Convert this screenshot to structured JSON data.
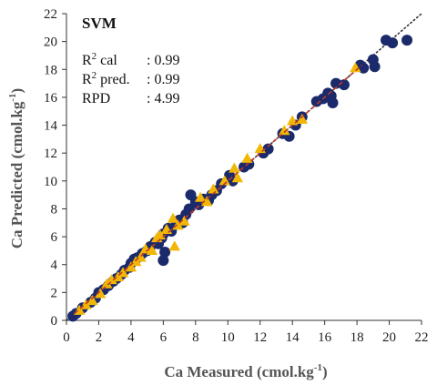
{
  "chart_data": {
    "type": "scatter",
    "title": "SVM",
    "xlabel": "Ca Measured (cmol.kg-1)",
    "ylabel": "Ca Predicted (cmol.kg-1)",
    "xlabel_parts": {
      "main": "Ca Measured (cmol.kg",
      "sup": "-1",
      "end": ")"
    },
    "ylabel_parts": {
      "main": "Ca Predicted (cmol.kg",
      "sup": "-1",
      "end": ")"
    },
    "xlim": [
      0,
      22
    ],
    "ylim": [
      0,
      22
    ],
    "x_ticks": [
      0,
      2,
      4,
      6,
      8,
      10,
      12,
      14,
      16,
      18,
      20,
      22
    ],
    "y_ticks": [
      0,
      2,
      4,
      6,
      8,
      10,
      12,
      14,
      16,
      18,
      20,
      22
    ],
    "grid": false,
    "stats": [
      {
        "label": "R",
        "sup": "2",
        "rest": " cal",
        "value": ": 0.99"
      },
      {
        "label": "R",
        "sup": "2",
        "rest": " pred.",
        "value": ": 0.99"
      },
      {
        "label": "RPD",
        "sup": "",
        "rest": "",
        "value": ": 4.99"
      }
    ],
    "colors": {
      "calibration": "#1b2a6b",
      "prediction": "#f2b705",
      "identity_line": "#333333",
      "fit_line": "#c0392b"
    },
    "identity_line": [
      [
        0,
        0
      ],
      [
        22,
        22
      ]
    ],
    "fit_line": [
      [
        0.5,
        0.5
      ],
      [
        18.3,
        18.3
      ]
    ],
    "series": [
      {
        "marker": "circle",
        "points": [
          [
            0.4,
            0.3
          ],
          [
            0.6,
            0.5
          ],
          [
            1.0,
            0.9
          ],
          [
            1.5,
            1.3
          ],
          [
            1.8,
            1.6
          ],
          [
            2.0,
            2.0
          ],
          [
            2.3,
            2.2
          ],
          [
            2.6,
            2.5
          ],
          [
            2.9,
            2.8
          ],
          [
            3.1,
            3.0
          ],
          [
            3.4,
            3.3
          ],
          [
            3.6,
            3.6
          ],
          [
            3.9,
            3.8
          ],
          [
            4.0,
            4.1
          ],
          [
            4.2,
            4.4
          ],
          [
            4.4,
            4.5
          ],
          [
            4.7,
            4.8
          ],
          [
            5.0,
            5.0
          ],
          [
            5.2,
            5.3
          ],
          [
            5.5,
            5.6
          ],
          [
            5.7,
            5.5
          ],
          [
            5.9,
            5.9
          ],
          [
            6.0,
            6.2
          ],
          [
            6.1,
            4.9
          ],
          [
            6.0,
            4.3
          ],
          [
            6.3,
            6.6
          ],
          [
            6.5,
            6.4
          ],
          [
            6.8,
            6.9
          ],
          [
            7.0,
            7.2
          ],
          [
            7.2,
            7.0
          ],
          [
            7.4,
            7.6
          ],
          [
            7.6,
            8.0
          ],
          [
            7.7,
            9.0
          ],
          [
            8.0,
            8.5
          ],
          [
            8.2,
            8.3
          ],
          [
            8.5,
            8.7
          ],
          [
            8.8,
            8.6
          ],
          [
            9.0,
            9.0
          ],
          [
            9.3,
            9.3
          ],
          [
            9.6,
            9.8
          ],
          [
            10.1,
            10.4
          ],
          [
            10.3,
            10.0
          ],
          [
            11.0,
            11.0
          ],
          [
            11.3,
            11.2
          ],
          [
            12.2,
            12.0
          ],
          [
            12.5,
            12.3
          ],
          [
            13.4,
            13.4
          ],
          [
            13.8,
            13.2
          ],
          [
            14.2,
            14.0
          ],
          [
            14.6,
            14.6
          ],
          [
            15.5,
            15.7
          ],
          [
            15.9,
            15.9
          ],
          [
            16.2,
            16.3
          ],
          [
            16.4,
            16.1
          ],
          [
            16.5,
            15.6
          ],
          [
            16.7,
            17.0
          ],
          [
            17.2,
            16.9
          ],
          [
            18.2,
            18.3
          ],
          [
            18.4,
            18.1
          ],
          [
            19.0,
            18.7
          ],
          [
            19.1,
            18.2
          ],
          [
            19.8,
            20.1
          ],
          [
            20.2,
            19.9
          ],
          [
            21.1,
            20.1
          ]
        ]
      },
      {
        "marker": "triangle",
        "points": [
          [
            0.8,
            0.7
          ],
          [
            1.2,
            1.1
          ],
          [
            1.6,
            1.4
          ],
          [
            2.1,
            1.9
          ],
          [
            2.5,
            2.6
          ],
          [
            2.8,
            2.9
          ],
          [
            3.2,
            3.1
          ],
          [
            3.5,
            3.4
          ],
          [
            4.0,
            3.8
          ],
          [
            4.3,
            4.2
          ],
          [
            4.6,
            4.5
          ],
          [
            4.9,
            5.1
          ],
          [
            5.3,
            5.0
          ],
          [
            5.6,
            5.9
          ],
          [
            5.8,
            6.1
          ],
          [
            6.2,
            6.5
          ],
          [
            6.6,
            7.3
          ],
          [
            6.7,
            5.3
          ],
          [
            6.9,
            6.8
          ],
          [
            7.3,
            7.1
          ],
          [
            8.3,
            8.8
          ],
          [
            8.7,
            8.5
          ],
          [
            9.1,
            9.4
          ],
          [
            9.8,
            10.0
          ],
          [
            10.4,
            10.9
          ],
          [
            10.6,
            10.2
          ],
          [
            11.2,
            11.6
          ],
          [
            12.0,
            12.3
          ],
          [
            13.5,
            13.6
          ],
          [
            14.0,
            14.3
          ],
          [
            14.6,
            14.4
          ],
          [
            17.9,
            18.1
          ]
        ]
      }
    ]
  }
}
